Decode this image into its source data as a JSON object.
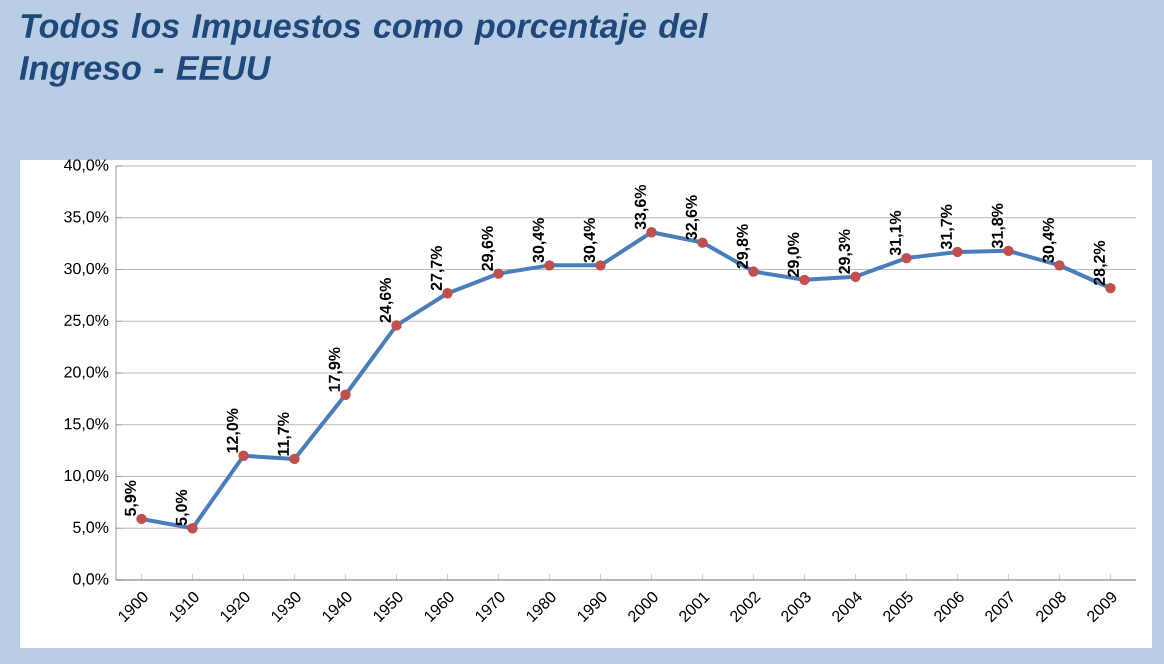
{
  "chart_data": {
    "type": "line",
    "title": "Todos los Impuestos como porcentaje del Ingreso - EEUU",
    "categories": [
      "1900",
      "1910",
      "1920",
      "1930",
      "1940",
      "1950",
      "1960",
      "1970",
      "1980",
      "1990",
      "2000",
      "2001",
      "2002",
      "2003",
      "2004",
      "2005",
      "2006",
      "2007",
      "2008",
      "2009"
    ],
    "series": [
      {
        "color": "#4a7ebb",
        "values": [
          5.9,
          5.0,
          12.0,
          11.7,
          17.9,
          24.6,
          27.7,
          29.6,
          30.4,
          30.4,
          33.6,
          32.6,
          29.8,
          29.0,
          29.3,
          31.1,
          31.7,
          31.8,
          30.4,
          28.2
        ],
        "value_labels": [
          "5,9%",
          "5,0%",
          "12,0%",
          "11,7%",
          "17,9%",
          "24,6%",
          "27,7%",
          "29,6%",
          "30,4%",
          "30,4%",
          "33,6%",
          "32,6%",
          "29,8%",
          "29,0%",
          "29,3%",
          "31,1%",
          "31,7%",
          "31,8%",
          "30,4%",
          "28,2%"
        ]
      }
    ],
    "ylim": [
      0,
      40
    ],
    "yticks": [
      {
        "value": 0,
        "label": "0,0%"
      },
      {
        "value": 5,
        "label": "5,0%"
      },
      {
        "value": 10,
        "label": "10,0%"
      },
      {
        "value": 15,
        "label": "15,0%"
      },
      {
        "value": 20,
        "label": "20,0%"
      },
      {
        "value": 25,
        "label": "25,0%"
      },
      {
        "value": 30,
        "label": "30,0%"
      },
      {
        "value": 35,
        "label": "35,0%"
      },
      {
        "value": 40,
        "label": "40,0%"
      }
    ],
    "grid": "y",
    "marker": "circle",
    "line_style": "solid"
  }
}
